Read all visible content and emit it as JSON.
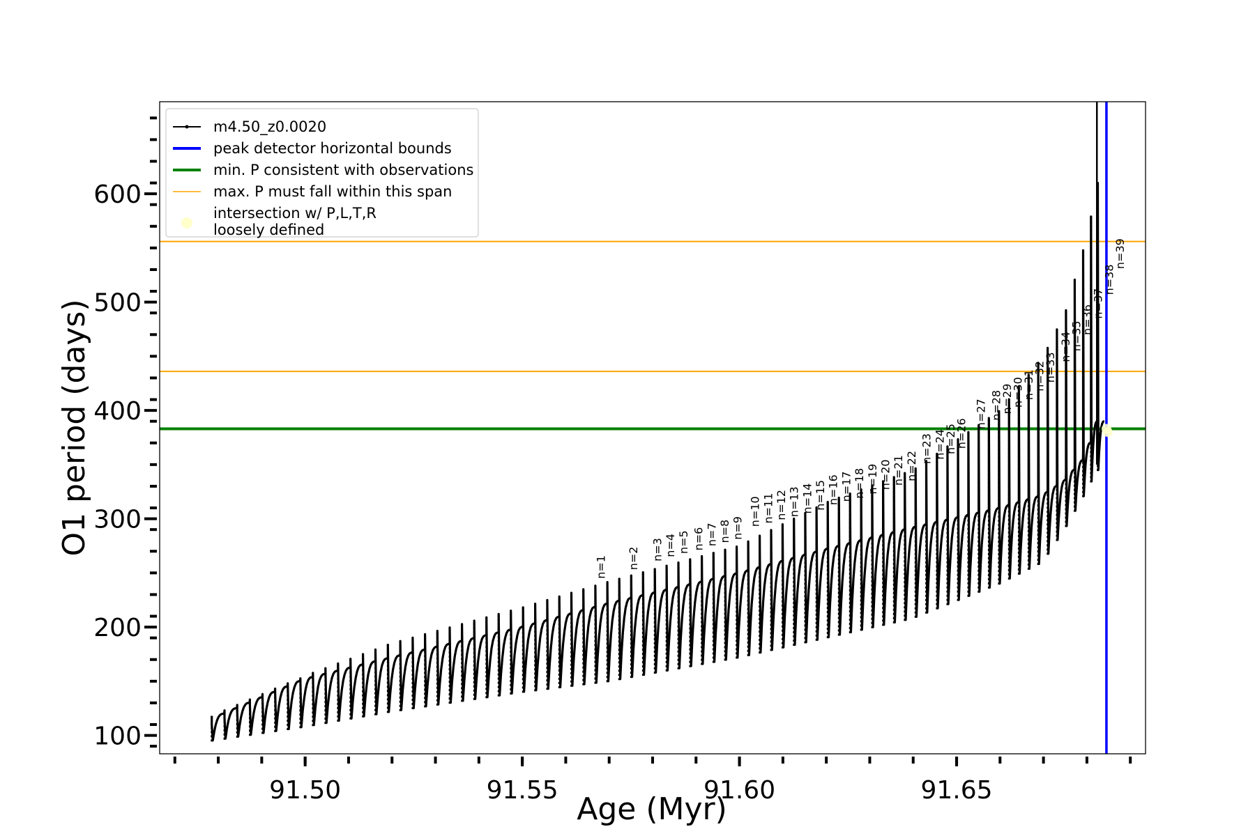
{
  "chart_data": {
    "type": "line",
    "xlabel": "Age (Myr)",
    "ylabel": "O1 period (days)",
    "xlim": [
      91.4665,
      91.6935
    ],
    "ylim": [
      83,
      685
    ],
    "x_ticks": [
      "91.50",
      "91.55",
      "91.60",
      "91.65"
    ],
    "x_tick_values": [
      91.5,
      91.55,
      91.6,
      91.65
    ],
    "y_ticks": [
      "100",
      "200",
      "300",
      "400",
      "500",
      "600"
    ],
    "y_tick_values": [
      100,
      200,
      300,
      400,
      500,
      600
    ],
    "grid": false,
    "legend_position": "top-left",
    "legend": [
      {
        "label": "m4.50_z0.0020",
        "color": "#000000",
        "style": "line-marker"
      },
      {
        "label": "peak detector horizontal bounds",
        "color": "#0000ff",
        "style": "thick-line"
      },
      {
        "label": "min. P consistent with observations",
        "color": "#008000",
        "style": "thick-line"
      },
      {
        "label": "max. P must fall within this span",
        "color": "#ffa500",
        "style": "thin-line"
      },
      {
        "label": "intersection w/ P,L,T,R",
        "label2": "loosely defined",
        "color": "#ffffcc",
        "style": "marker"
      }
    ],
    "series": [
      {
        "name": "m4.50_z0.0020",
        "color": "#000000",
        "pulse_start_age": [
          91.4785,
          91.5732
        ],
        "pulse_end_age": [
          91.6825,
          91.6845
        ],
        "pulse_count": 79,
        "envelope_max_period": [
          [
            91.4785,
            110
          ],
          [
            91.5,
            155
          ],
          [
            91.52,
            185
          ],
          [
            91.55,
            218
          ],
          [
            91.57,
            242
          ],
          [
            91.6,
            275
          ],
          [
            91.62,
            315
          ],
          [
            91.64,
            345
          ],
          [
            91.66,
            400
          ],
          [
            91.67,
            450
          ],
          [
            91.675,
            490
          ],
          [
            91.68,
            560
          ],
          [
            91.6825,
            610
          ]
        ],
        "envelope_trough_period": [
          [
            91.4785,
            95
          ],
          [
            91.5,
            108
          ],
          [
            91.52,
            122
          ],
          [
            91.55,
            140
          ],
          [
            91.57,
            150
          ],
          [
            91.6,
            172
          ],
          [
            91.62,
            190
          ],
          [
            91.64,
            208
          ],
          [
            91.66,
            240
          ],
          [
            91.67,
            260
          ],
          [
            91.675,
            290
          ],
          [
            91.68,
            325
          ],
          [
            91.6825,
            345
          ]
        ],
        "envelope_baseline_period": [
          [
            91.4785,
            115
          ],
          [
            91.5,
            152
          ],
          [
            91.52,
            172
          ],
          [
            91.55,
            200
          ],
          [
            91.57,
            222
          ],
          [
            91.6,
            250
          ],
          [
            91.62,
            272
          ],
          [
            91.64,
            292
          ],
          [
            91.66,
            310
          ],
          [
            91.67,
            322
          ],
          [
            91.675,
            335
          ],
          [
            91.68,
            358
          ],
          [
            91.6825,
            390
          ]
        ]
      }
    ],
    "vertical_lines": [
      {
        "x": 91.6823,
        "color": "#000000",
        "name": "m4.50_z0.0020 spike"
      },
      {
        "x": 91.6845,
        "color": "#0000ff",
        "name": "peak detector horizontal bounds"
      }
    ],
    "horizontal_lines": [
      {
        "y": 383,
        "color": "#008000",
        "name": "min. P consistent with observations"
      },
      {
        "y": 436,
        "color": "#ffa500",
        "name": "max. P must fall within this span"
      },
      {
        "y": 556,
        "color": "#ffa500",
        "name": "max. P must fall within this span"
      }
    ],
    "intersection_points": [
      {
        "x": 91.6845,
        "y": 383
      },
      {
        "x": 91.6848,
        "y": 380
      }
    ],
    "pulse_annotations": [
      {
        "text": "n=1",
        "x": 91.569,
        "y": 242
      },
      {
        "text": "n=2",
        "x": 91.5765,
        "y": 250
      },
      {
        "text": "n=3",
        "x": 91.582,
        "y": 258
      },
      {
        "text": "n=4",
        "x": 91.585,
        "y": 262
      },
      {
        "text": "n=5",
        "x": 91.588,
        "y": 265
      },
      {
        "text": "n=6",
        "x": 91.5915,
        "y": 268
      },
      {
        "text": "n=7",
        "x": 91.5945,
        "y": 272
      },
      {
        "text": "n=8",
        "x": 91.5975,
        "y": 275
      },
      {
        "text": "n=9",
        "x": 91.6005,
        "y": 278
      },
      {
        "text": "n=10",
        "x": 91.6045,
        "y": 290
      },
      {
        "text": "n=11",
        "x": 91.6075,
        "y": 293
      },
      {
        "text": "n=12",
        "x": 91.6105,
        "y": 296
      },
      {
        "text": "n=13",
        "x": 91.6135,
        "y": 299
      },
      {
        "text": "n=14",
        "x": 91.6165,
        "y": 302
      },
      {
        "text": "n=15",
        "x": 91.6195,
        "y": 305
      },
      {
        "text": "n=16",
        "x": 91.6225,
        "y": 310
      },
      {
        "text": "n=17",
        "x": 91.6255,
        "y": 313
      },
      {
        "text": "n=18",
        "x": 91.6285,
        "y": 316
      },
      {
        "text": "n=19",
        "x": 91.6315,
        "y": 320
      },
      {
        "text": "n=20",
        "x": 91.6345,
        "y": 324
      },
      {
        "text": "n=21",
        "x": 91.6375,
        "y": 328
      },
      {
        "text": "n=22",
        "x": 91.6405,
        "y": 332
      },
      {
        "text": "n=23",
        "x": 91.644,
        "y": 348
      },
      {
        "text": "n=24",
        "x": 91.647,
        "y": 352
      },
      {
        "text": "n=25",
        "x": 91.6495,
        "y": 357
      },
      {
        "text": "n=26",
        "x": 91.652,
        "y": 362
      },
      {
        "text": "n=27",
        "x": 91.6565,
        "y": 380
      },
      {
        "text": "n=28",
        "x": 91.66,
        "y": 388
      },
      {
        "text": "n=29",
        "x": 91.6625,
        "y": 394
      },
      {
        "text": "n=30",
        "x": 91.665,
        "y": 400
      },
      {
        "text": "n=31",
        "x": 91.6675,
        "y": 407
      },
      {
        "text": "n=32",
        "x": 91.67,
        "y": 415
      },
      {
        "text": "n=33",
        "x": 91.6725,
        "y": 423
      },
      {
        "text": "n=34",
        "x": 91.676,
        "y": 442
      },
      {
        "text": "n=35",
        "x": 91.6785,
        "y": 452
      },
      {
        "text": "n=36",
        "x": 91.681,
        "y": 467
      },
      {
        "text": "n=37",
        "x": 91.6835,
        "y": 482
      },
      {
        "text": "n=38",
        "x": 91.686,
        "y": 504
      },
      {
        "text": "n=39",
        "x": 91.6885,
        "y": 528
      }
    ]
  }
}
